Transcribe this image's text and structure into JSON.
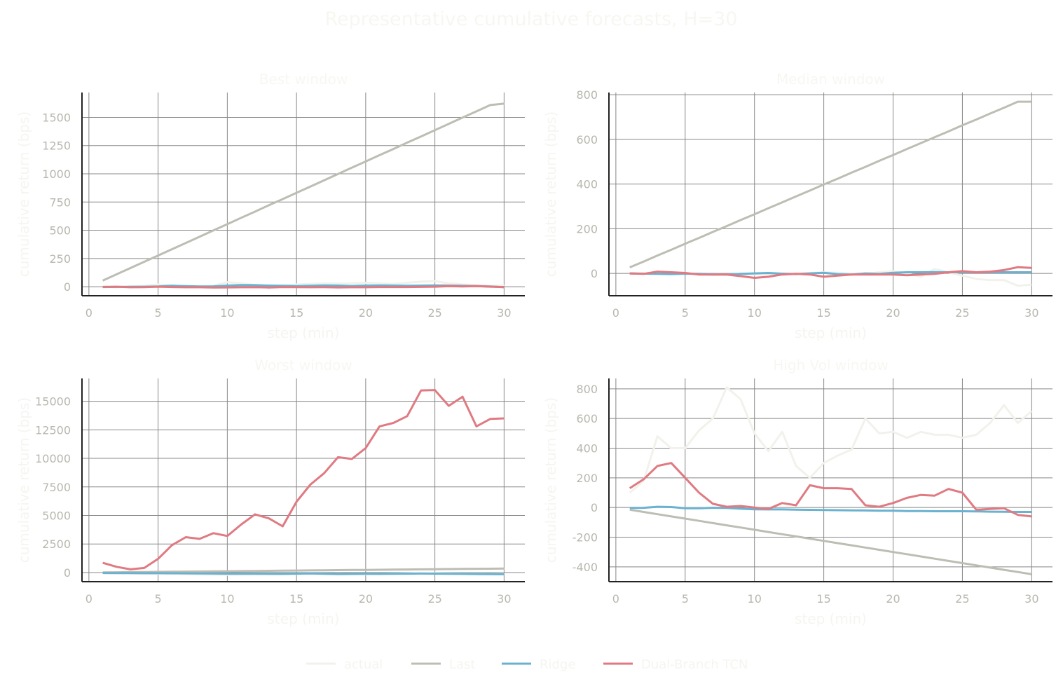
{
  "figure_title": "Representative cumulative forecasts, H=30",
  "colors": {
    "background": "#ffffff",
    "grid": "#888888",
    "axis": "#222222",
    "tick_text": "#b8b8b0",
    "title_text": "#f7f7f2",
    "label_text": "#f5f5f0",
    "actual": "#f2f2ec",
    "Last": "#bdbdb4",
    "Ridge": "#6ab2d0",
    "Dual-Branch TCN": "#e07a82"
  },
  "legend": [
    "actual",
    "Last",
    "Ridge",
    "Dual-Branch TCN"
  ],
  "chart_data": [
    {
      "type": "line",
      "title": "Best window",
      "xlabel": "step (min)",
      "ylabel": "cumulative return (bps)",
      "xlim": [
        -0.5,
        31.5
      ],
      "ylim": [
        -80,
        1720
      ],
      "xticks": [
        0,
        5,
        10,
        15,
        20,
        25,
        30
      ],
      "yticks": [
        0,
        250,
        500,
        750,
        1000,
        1250,
        1500
      ],
      "grid": true,
      "x": [
        1,
        2,
        3,
        4,
        5,
        6,
        7,
        8,
        9,
        10,
        11,
        12,
        13,
        14,
        15,
        16,
        17,
        18,
        19,
        20,
        21,
        22,
        23,
        24,
        25,
        26,
        27,
        28,
        29,
        30
      ],
      "series": [
        {
          "name": "actual",
          "values": [
            0,
            -5,
            3,
            8,
            20,
            12,
            -3,
            5,
            10,
            40,
            30,
            15,
            10,
            8,
            20,
            25,
            30,
            28,
            30,
            35,
            30,
            25,
            35,
            45,
            50,
            30,
            20,
            15,
            10,
            12
          ]
        },
        {
          "name": "Last",
          "values": [
            54,
            110,
            165,
            221,
            276,
            332,
            387,
            443,
            499,
            554,
            610,
            665,
            721,
            776,
            832,
            887,
            943,
            998,
            1054,
            1109,
            1165,
            1220,
            1276,
            1331,
            1387,
            1442,
            1498,
            1553,
            1609,
            1621
          ]
        },
        {
          "name": "Ridge",
          "values": [
            -3,
            -2,
            -1,
            0,
            2,
            8,
            5,
            2,
            3,
            10,
            15,
            14,
            10,
            8,
            5,
            8,
            12,
            10,
            6,
            10,
            12,
            10,
            8,
            10,
            12,
            10,
            8,
            5,
            2,
            -5
          ]
        },
        {
          "name": "Dual-Branch TCN",
          "values": [
            -2,
            0,
            -5,
            -4,
            0,
            -3,
            -5,
            -5,
            -7,
            -6,
            -5,
            -4,
            -7,
            -3,
            -4,
            -5,
            -4,
            -6,
            -5,
            -5,
            -3,
            -3,
            -3,
            -2,
            0,
            5,
            2,
            5,
            0,
            -3
          ]
        }
      ]
    },
    {
      "type": "line",
      "title": "Median window",
      "xlabel": "step (min)",
      "ylabel": "cumulative return (bps)",
      "xlim": [
        -0.5,
        31.5
      ],
      "ylim": [
        -100,
        810
      ],
      "xticks": [
        0,
        5,
        10,
        15,
        20,
        25,
        30
      ],
      "yticks": [
        0,
        200,
        400,
        600,
        800
      ],
      "grid": true,
      "x": [
        1,
        2,
        3,
        4,
        5,
        6,
        7,
        8,
        9,
        10,
        11,
        12,
        13,
        14,
        15,
        16,
        17,
        18,
        19,
        20,
        21,
        22,
        23,
        24,
        25,
        26,
        27,
        28,
        29,
        30
      ],
      "series": [
        {
          "name": "actual",
          "values": [
            -3,
            0,
            3,
            2,
            0,
            -2,
            -8,
            -6,
            -4,
            -5,
            -3,
            -2,
            0,
            2,
            5,
            3,
            0,
            -2,
            5,
            10,
            0,
            -15,
            20,
            5,
            -10,
            -25,
            -30,
            -30,
            -55,
            -50
          ]
        },
        {
          "name": "Last",
          "values": [
            27,
            53,
            80,
            106,
            133,
            159,
            186,
            212,
            239,
            265,
            292,
            318,
            345,
            371,
            398,
            424,
            451,
            477,
            504,
            530,
            557,
            583,
            610,
            636,
            663,
            689,
            716,
            742,
            769,
            769
          ]
        },
        {
          "name": "Ridge",
          "values": [
            0,
            -1,
            -2,
            -3,
            -1,
            -2,
            -3,
            -5,
            -2,
            0,
            2,
            -1,
            -3,
            0,
            3,
            -3,
            -5,
            0,
            -2,
            3,
            5,
            5,
            6,
            5,
            6,
            5,
            5,
            5,
            5,
            5
          ]
        },
        {
          "name": "Dual-Branch TCN",
          "values": [
            0,
            -2,
            8,
            5,
            2,
            -5,
            -5,
            -5,
            -12,
            -20,
            -15,
            -5,
            -2,
            -5,
            -15,
            -10,
            -5,
            -5,
            -5,
            -5,
            -8,
            -5,
            -2,
            5,
            10,
            5,
            8,
            15,
            28,
            25
          ]
        }
      ]
    },
    {
      "type": "line",
      "title": "Worst window",
      "xlabel": "step (min)",
      "ylabel": "cumulative return (bps)",
      "xlim": [
        -0.5,
        31.5
      ],
      "ylim": [
        -800,
        17000
      ],
      "xticks": [
        0,
        5,
        10,
        15,
        20,
        25,
        30
      ],
      "yticks": [
        0,
        2500,
        5000,
        7500,
        10000,
        12500,
        15000
      ],
      "grid": true,
      "x": [
        1,
        2,
        3,
        4,
        5,
        6,
        7,
        8,
        9,
        10,
        11,
        12,
        13,
        14,
        15,
        16,
        17,
        18,
        19,
        20,
        21,
        22,
        23,
        24,
        25,
        26,
        27,
        28,
        29,
        30
      ],
      "series": [
        {
          "name": "actual",
          "values": [
            -30,
            -50,
            -80,
            -100,
            -110,
            -120,
            -150,
            -180,
            -190,
            -200,
            -190,
            -180,
            -170,
            -150,
            -120,
            -100,
            -120,
            -150,
            -160,
            -150,
            -140,
            -100,
            -80,
            -60,
            -70,
            -90,
            -100,
            -110,
            -120,
            -110
          ]
        },
        {
          "name": "Last",
          "values": [
            12,
            23,
            35,
            47,
            58,
            70,
            82,
            93,
            105,
            117,
            128,
            140,
            152,
            163,
            175,
            187,
            198,
            210,
            222,
            233,
            245,
            257,
            268,
            280,
            292,
            303,
            315,
            327,
            338,
            350
          ]
        },
        {
          "name": "Ridge",
          "values": [
            -40,
            -45,
            -50,
            -55,
            -60,
            -65,
            -70,
            -80,
            -90,
            -100,
            -100,
            -100,
            -110,
            -120,
            -100,
            -80,
            -110,
            -130,
            -120,
            -110,
            -120,
            -110,
            -100,
            -90,
            -100,
            -110,
            -120,
            -130,
            -140,
            -150
          ]
        },
        {
          "name": "Dual-Branch TCN",
          "values": [
            850,
            500,
            280,
            400,
            1200,
            2400,
            3100,
            2950,
            3450,
            3200,
            4200,
            5100,
            4750,
            4050,
            6200,
            7700,
            8700,
            10100,
            9950,
            10900,
            12800,
            13100,
            13700,
            15950,
            15980,
            14600,
            15400,
            12800,
            13450,
            13500
          ]
        }
      ]
    },
    {
      "type": "line",
      "title": "High Vol window",
      "xlabel": "step (min)",
      "ylabel": "cumulative return (bps)",
      "xlim": [
        -0.5,
        31.5
      ],
      "ylim": [
        -500,
        870
      ],
      "xticks": [
        0,
        5,
        10,
        15,
        20,
        25,
        30
      ],
      "yticks": [
        -400,
        -200,
        0,
        200,
        400,
        600,
        800
      ],
      "grid": true,
      "x": [
        1,
        2,
        3,
        4,
        5,
        6,
        7,
        8,
        9,
        10,
        11,
        12,
        13,
        14,
        15,
        16,
        17,
        18,
        19,
        20,
        21,
        22,
        23,
        24,
        25,
        26,
        27,
        28,
        29,
        30
      ],
      "series": [
        {
          "name": "actual",
          "values": [
            100,
            180,
            480,
            400,
            400,
            520,
            600,
            810,
            730,
            500,
            380,
            510,
            280,
            200,
            300,
            350,
            390,
            600,
            500,
            510,
            470,
            510,
            490,
            490,
            470,
            490,
            570,
            690,
            570,
            650
          ]
        },
        {
          "name": "Last",
          "values": [
            -15,
            -30,
            -45,
            -60,
            -75,
            -90,
            -105,
            -120,
            -135,
            -150,
            -165,
            -180,
            -195,
            -210,
            -225,
            -240,
            -255,
            -270,
            -285,
            -300,
            -315,
            -330,
            -345,
            -360,
            -375,
            -390,
            -405,
            -420,
            -435,
            -450
          ]
        },
        {
          "name": "Ridge",
          "values": [
            -3,
            -2,
            5,
            3,
            -5,
            -5,
            -2,
            -3,
            -8,
            -12,
            -13,
            -13,
            -15,
            -16,
            -17,
            -18,
            -19,
            -20,
            -22,
            -22,
            -24,
            -24,
            -25,
            -25,
            -25,
            -26,
            -28,
            -29,
            -30,
            -30
          ]
        },
        {
          "name": "Dual-Branch TCN",
          "values": [
            130,
            190,
            280,
            300,
            200,
            100,
            25,
            5,
            10,
            0,
            -10,
            30,
            15,
            150,
            130,
            130,
            125,
            15,
            5,
            30,
            65,
            85,
            80,
            125,
            100,
            -15,
            -10,
            -5,
            -50,
            -60
          ]
        }
      ]
    }
  ]
}
